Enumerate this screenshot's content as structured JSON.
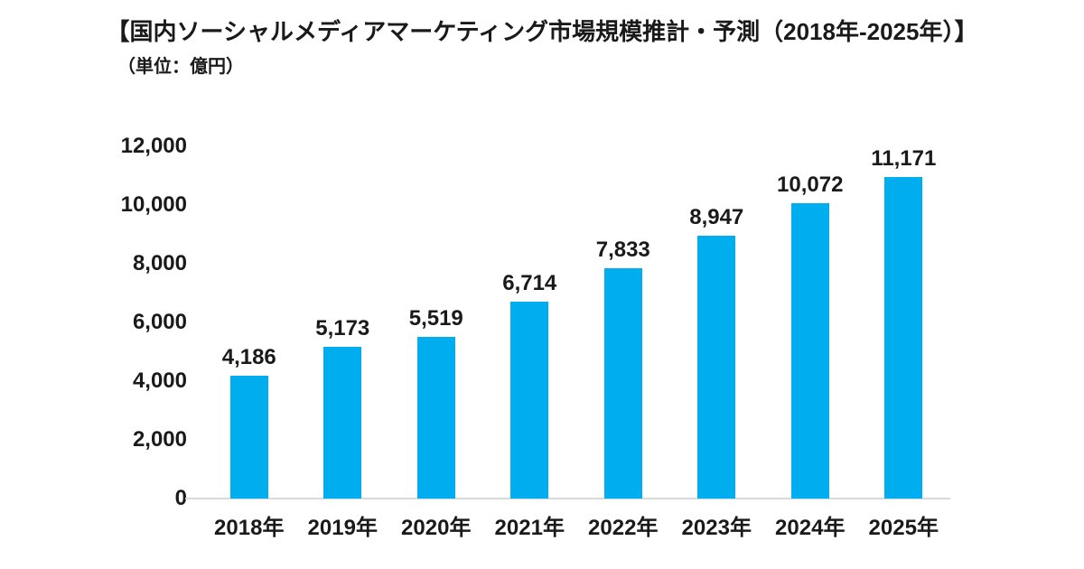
{
  "title": "【国内ソーシャルメディアマーケティング市場規模推計・予測（2018年-2025年）】",
  "unit_label": "（単位：億円）",
  "colors": {
    "bar": "#00AEEF",
    "axis_line": "#d9d9d9",
    "text": "#1a1a1a",
    "background": "#ffffff"
  },
  "chart_data": {
    "type": "bar",
    "title": "国内ソーシャルメディアマーケティング市場規模推計・予測（2018年-2025年）",
    "unit": "億円",
    "categories": [
      "2018年",
      "2019年",
      "2020年",
      "2021年",
      "2022年",
      "2023年",
      "2024年",
      "2025年"
    ],
    "values": [
      4186,
      5173,
      5519,
      6714,
      7833,
      8947,
      10072,
      11171
    ],
    "value_labels": [
      "4,186",
      "5,173",
      "5,519",
      "6,714",
      "7,833",
      "8,947",
      "10,072",
      "11,171"
    ],
    "xlabel": "",
    "ylabel": "",
    "ylim": [
      0,
      12000
    ],
    "y_ticks": [
      0,
      2000,
      4000,
      6000,
      8000,
      10000,
      12000
    ],
    "y_tick_labels": [
      "0",
      "2,000",
      "4,000",
      "6,000",
      "8,000",
      "10,000",
      "12,000"
    ],
    "grid": false,
    "legend": false,
    "series_color": "#00AEEF"
  }
}
